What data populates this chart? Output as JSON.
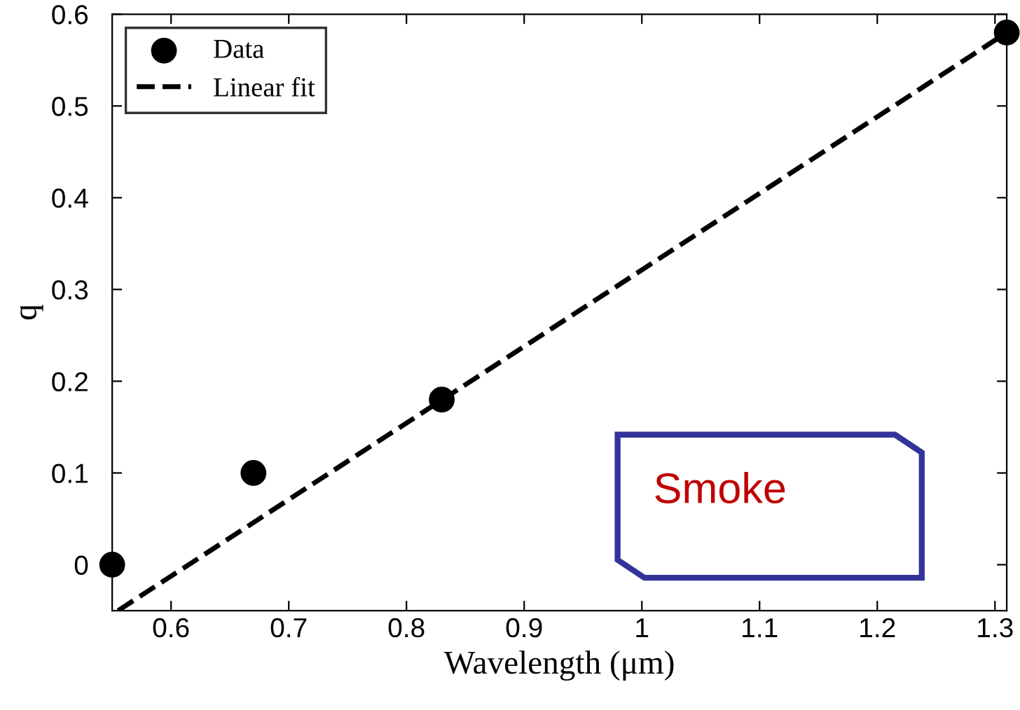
{
  "chart_data": {
    "type": "scatter",
    "xlabel": "Wavelength (μm)",
    "ylabel": "q",
    "xlim": [
      0.55,
      1.31
    ],
    "ylim": [
      -0.05,
      0.6
    ],
    "xticks": [
      0.6,
      0.7,
      0.8,
      0.9,
      1,
      1.1,
      1.2,
      1.3
    ],
    "yticks": [
      0,
      0.1,
      0.2,
      0.3,
      0.4,
      0.5,
      0.6
    ],
    "series": [
      {
        "name": "Data",
        "color": "#000000",
        "marker": "circle",
        "x": [
          0.55,
          0.67,
          0.83,
          1.31
        ],
        "values": [
          0,
          0.1,
          0.18,
          0.58
        ]
      },
      {
        "name": "Linear fit",
        "type": "line",
        "color": "#000000",
        "line_style": "dashed",
        "marker": "none",
        "x": [
          0.555,
          1.31
        ],
        "values": [
          -0.05,
          0.58
        ]
      }
    ],
    "annotations": [
      "Smoke"
    ],
    "legend": "top left",
    "grid": false
  }
}
